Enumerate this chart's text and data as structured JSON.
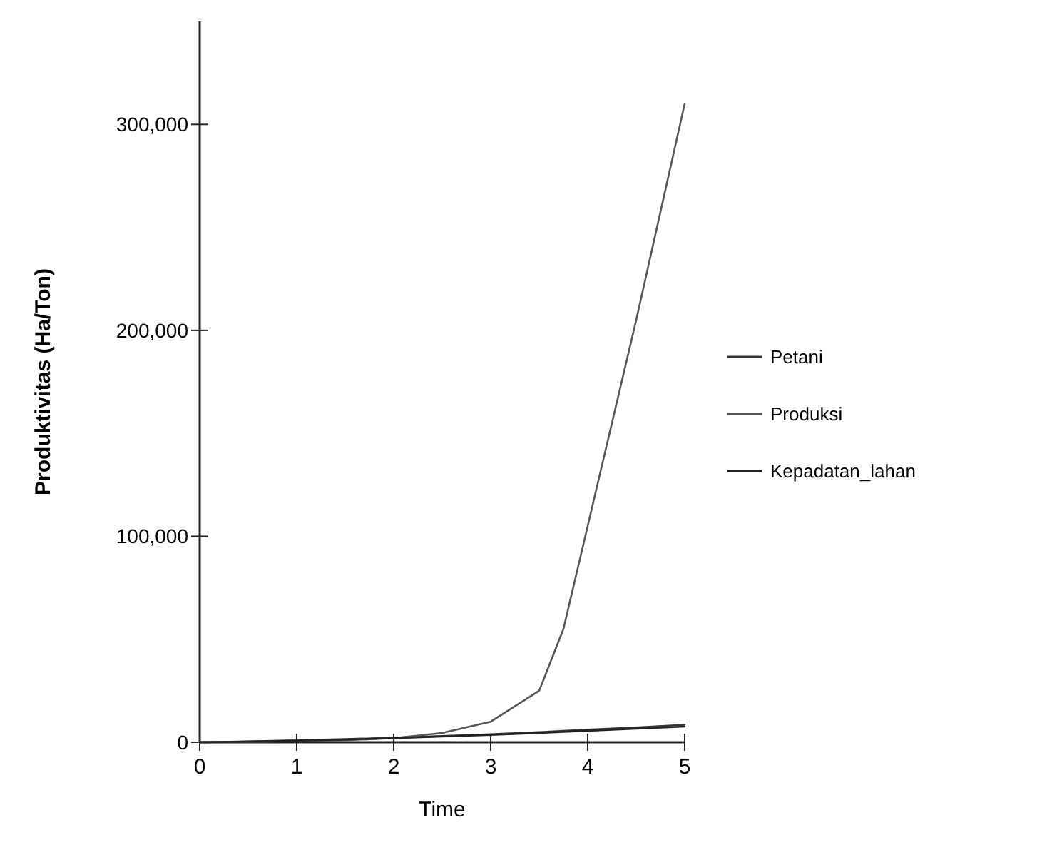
{
  "chart_data": {
    "type": "line",
    "xlabel": "Time",
    "ylabel": "Produktivitas (Ha/Ton)",
    "xlim": [
      0,
      5
    ],
    "xticks": [
      0,
      1,
      2,
      3,
      4,
      5
    ],
    "ylim": [
      0,
      350000
    ],
    "yticks": [
      0,
      {
        "value": 100000,
        "label": "100,000"
      },
      {
        "value": 200000,
        "label": "200,000"
      },
      {
        "value": 300000,
        "label": "300,000"
      }
    ],
    "grid": false,
    "legend": "right",
    "marker": "none",
    "line_style": "solid",
    "x": [
      0,
      0.5,
      1,
      1.5,
      2,
      2.5,
      3,
      3.5,
      3.75,
      4,
      4.5,
      5
    ],
    "series": [
      {
        "name": "Petani",
        "color": "#333333",
        "values": [
          0,
          400,
          900,
          1500,
          2200,
          3000,
          3900,
          4900,
          5500,
          6100,
          7200,
          8500
        ]
      },
      {
        "name": "Produksi",
        "color": "#555555",
        "values": [
          0,
          200,
          500,
          1000,
          2000,
          4500,
          10000,
          25000,
          55000,
          105000,
          205000,
          310000
        ]
      },
      {
        "name": "Kepadatan_lahan",
        "color": "#222222",
        "values": [
          0,
          300,
          800,
          1300,
          2000,
          2800,
          3600,
          4500,
          5000,
          5600,
          6600,
          7600
        ]
      }
    ]
  }
}
